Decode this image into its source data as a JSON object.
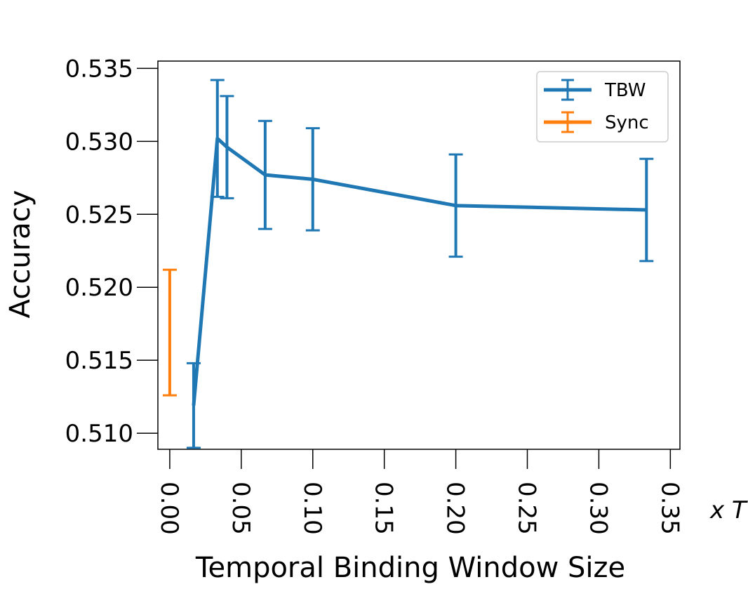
{
  "chart_data": {
    "type": "line",
    "xlabel": "Temporal Binding Window Size",
    "ylabel": "Accuracy",
    "x_unit_label": "x T",
    "xlim": [
      -0.0083,
      0.3567
    ],
    "ylim": [
      0.5089,
      0.5355
    ],
    "x_ticks": [
      "0.00",
      "0.05",
      "0.10",
      "0.15",
      "0.20",
      "0.25",
      "0.30",
      "0.35"
    ],
    "y_ticks": [
      "0.510",
      "0.515",
      "0.520",
      "0.525",
      "0.530",
      "0.535"
    ],
    "x_tick_values": [
      0,
      0.05,
      0.1,
      0.15,
      0.2,
      0.25,
      0.3,
      0.35
    ],
    "y_tick_values": [
      0.51,
      0.515,
      0.52,
      0.525,
      0.53,
      0.535
    ],
    "grid": false,
    "legend_position": "top-right",
    "series": [
      {
        "name": "TBW",
        "color": "#1f77b4",
        "x": [
          0.0167,
          0.0333,
          0.04,
          0.0667,
          0.1,
          0.2,
          0.3333
        ],
        "y": [
          0.5119,
          0.5302,
          0.5296,
          0.5277,
          0.5274,
          0.5256,
          0.5253
        ],
        "err": [
          0.0029,
          0.004,
          0.0035,
          0.0037,
          0.0035,
          0.0035,
          0.0035
        ]
      },
      {
        "name": "Sync",
        "color": "#ff7f0e",
        "x": [
          0
        ],
        "y": [
          0.5169
        ],
        "err": [
          0.0043
        ]
      }
    ]
  }
}
